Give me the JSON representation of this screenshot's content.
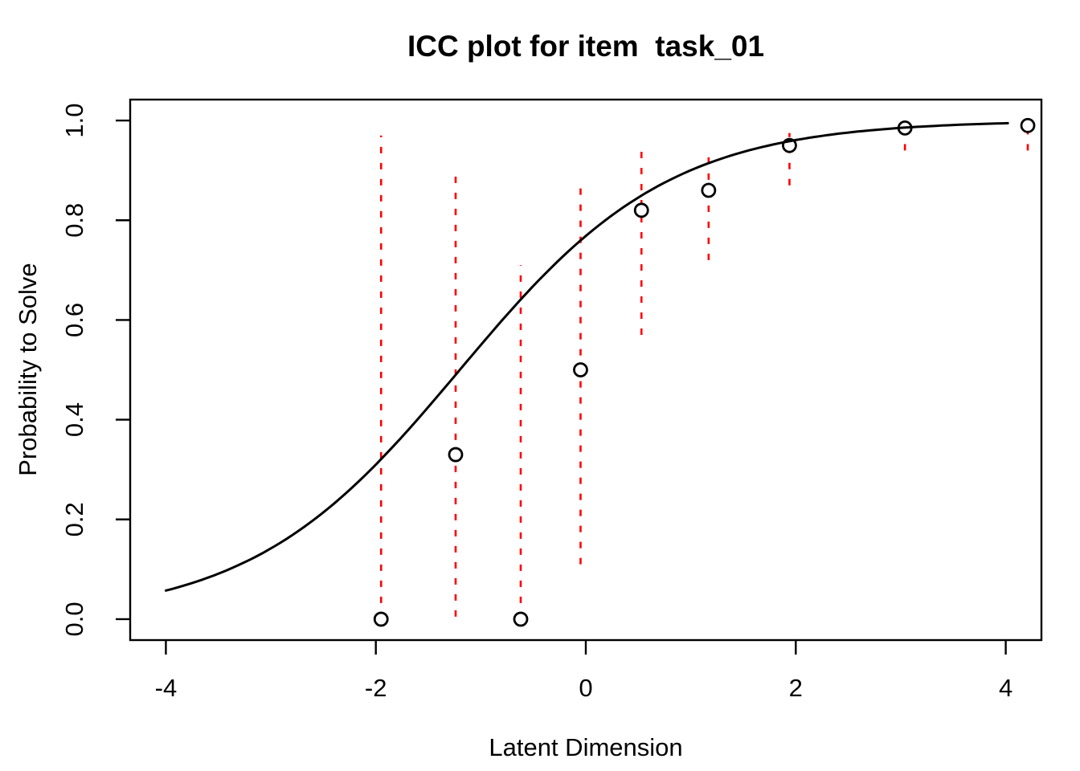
{
  "figure": {
    "background": "#FFFFFF",
    "text_color": "#000000"
  },
  "chart_data": {
    "type": "line",
    "title": "ICC plot for item  task_01",
    "xlabel": "Latent Dimension",
    "ylabel": "Probability to Solve",
    "xlim": [
      -4.34,
      4.34
    ],
    "ylim": [
      -0.042,
      1.042
    ],
    "grid": false,
    "legend": null,
    "x_ticks": [
      -4,
      -2,
      0,
      2,
      4
    ],
    "x_tick_labels": [
      "-4",
      "-2",
      "0",
      "2",
      "4"
    ],
    "y_ticks": [
      0,
      0.2,
      0.4,
      0.6,
      0.8,
      1
    ],
    "y_tick_labels": [
      "0.0",
      "0.2",
      "0.4",
      "0.6",
      "0.8",
      "1.0"
    ],
    "curve": {
      "model": "logistic",
      "formula": "P(theta) = 1 / (1 + exp(-a*(theta-b)))",
      "discrimination_a": 1.0,
      "difficulty_b": -1.2,
      "domain": [
        -4.0,
        4.02
      ],
      "color": "#000000"
    },
    "points": [
      {
        "theta": -1.95,
        "p": 0.0,
        "ci": [
          0.0,
          0.97
        ]
      },
      {
        "theta": -1.24,
        "p": 0.33,
        "ci": [
          0.005,
          0.9
        ]
      },
      {
        "theta": -0.62,
        "p": 0.0,
        "ci": [
          0.0,
          0.71
        ]
      },
      {
        "theta": -0.05,
        "p": 0.5,
        "ci": [
          0.11,
          0.88
        ]
      },
      {
        "theta": 0.53,
        "p": 0.82,
        "ci": [
          0.57,
          0.955
        ]
      },
      {
        "theta": 1.17,
        "p": 0.86,
        "ci": [
          0.72,
          0.94
        ]
      },
      {
        "theta": 1.94,
        "p": 0.95,
        "ci": [
          0.87,
          0.975
        ]
      },
      {
        "theta": 3.04,
        "p": 0.985,
        "ci": [
          0.94,
          1.0
        ]
      },
      {
        "theta": 4.21,
        "p": 0.99,
        "ci": [
          0.94,
          1.0
        ]
      }
    ],
    "point_style": {
      "shape": "open-circle",
      "color": "#000000",
      "fill": "#FFFFFF",
      "radius_px": 8
    },
    "ci_style": {
      "color": "#FF0000",
      "line": "dashed"
    }
  }
}
